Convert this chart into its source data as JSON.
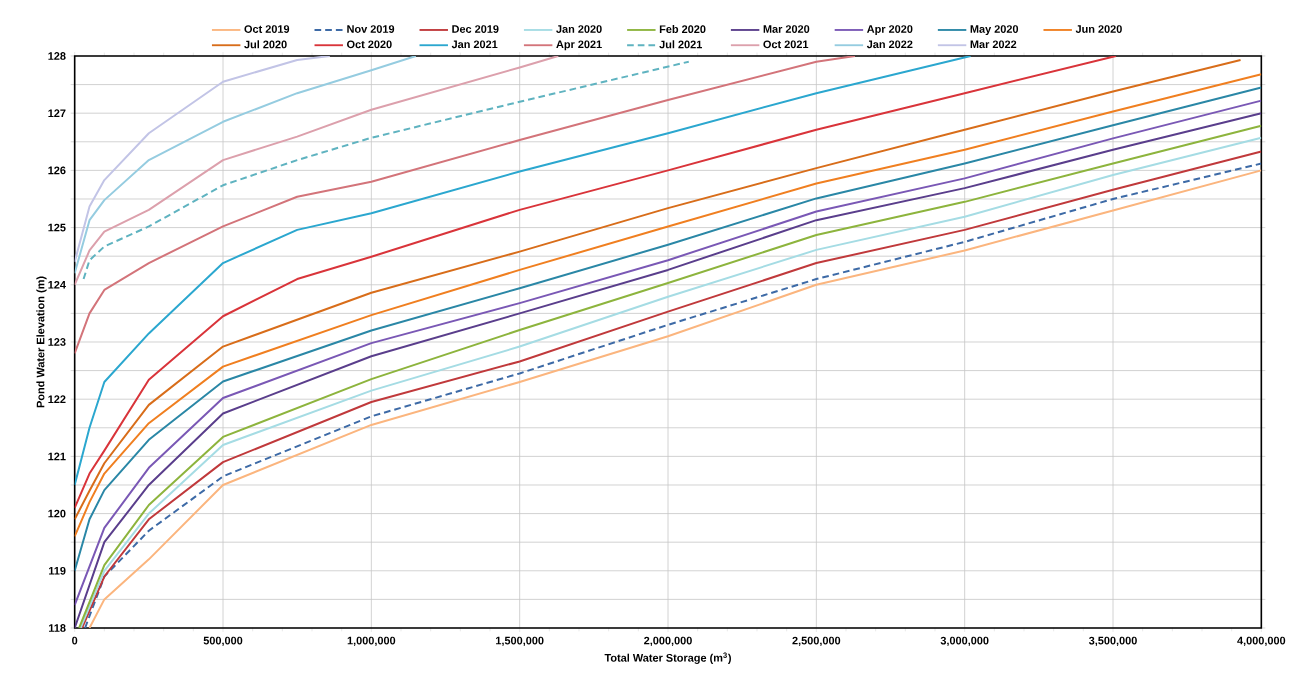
{
  "chart_data": {
    "type": "line",
    "xlabel": "Total Water Storage (m$^{3}$)",
    "ylabel": "Pond Water  Elevation (m)",
    "xlim": [
      0,
      4000000
    ],
    "ylim": [
      118,
      128
    ],
    "xticks": [
      0,
      {
        "value": 500000,
        "label": "500,000"
      },
      {
        "value": 1000000,
        "label": "1,000,000"
      },
      {
        "value": 1500000,
        "label": "1,500,000"
      },
      {
        "value": 2000000,
        "label": "2,000,000"
      },
      {
        "value": 2500000,
        "label": "2,500,000"
      },
      {
        "value": 3000000,
        "label": "3,000,000"
      },
      {
        "value": 3500000,
        "label": "3,500,000"
      },
      {
        "value": 4000000,
        "label": "4,000,000"
      }
    ],
    "yticks": [
      118,
      {
        "value": 118.5,
        "label": null
      },
      119,
      {
        "value": 119.5,
        "label": null
      },
      120,
      {
        "value": 120.5,
        "label": null
      },
      121,
      {
        "value": 121.5,
        "label": null
      },
      122,
      {
        "value": 122.5,
        "label": null
      },
      123,
      {
        "value": 123.5,
        "label": null
      },
      124,
      {
        "value": 124.5,
        "label": null
      },
      125,
      {
        "value": 125.5,
        "label": null
      },
      126,
      {
        "value": 126.5,
        "label": null
      },
      127,
      {
        "value": 127.5,
        "label": null
      },
      128
    ],
    "grid": true,
    "legend": "top",
    "series": [
      {
        "name": "Oct 2019",
        "color": "#fbb57e",
        "line_style": "solid",
        "x": [
          50000,
          100000,
          250000,
          500000,
          1000000,
          1500000,
          2000000,
          2500000,
          3000000,
          3500000,
          4000000
        ],
        "values": [
          118,
          118.5,
          119.2,
          120.5,
          121.55,
          122.3,
          123.1,
          124.0,
          124.6,
          125.3,
          126.0
        ]
      },
      {
        "name": "Nov 2019",
        "color": "#3d6aa6",
        "line_style": "dashed",
        "x": [
          35000,
          100000,
          250000,
          500000,
          1000000,
          1500000,
          2000000,
          2500000,
          3000000,
          3500000,
          4000000
        ],
        "values": [
          118,
          118.9,
          119.7,
          120.65,
          121.7,
          122.45,
          123.3,
          124.1,
          124.75,
          125.5,
          126.12
        ]
      },
      {
        "name": "Dec 2019",
        "color": "#c0393b",
        "line_style": "solid",
        "x": [
          25000,
          100000,
          250000,
          500000,
          1000000,
          1500000,
          2000000,
          2500000,
          3000000,
          3500000,
          4000000
        ],
        "values": [
          118,
          118.9,
          119.9,
          120.9,
          121.95,
          122.66,
          123.53,
          124.38,
          124.96,
          125.66,
          126.33
        ]
      },
      {
        "name": "Jan 2020",
        "color": "#a5dce4",
        "line_style": "solid",
        "x": [
          20000,
          100000,
          250000,
          500000,
          1000000,
          1500000,
          2000000,
          2500000,
          3000000,
          3500000,
          4000000
        ],
        "values": [
          118,
          119.0,
          120.0,
          121.2,
          122.15,
          122.92,
          123.79,
          124.61,
          125.19,
          125.92,
          126.57
        ]
      },
      {
        "name": "Feb 2020",
        "color": "#8db43d",
        "line_style": "solid",
        "x": [
          15000,
          100000,
          250000,
          500000,
          1000000,
          1500000,
          2000000,
          2500000,
          3000000,
          3500000,
          4000000
        ],
        "values": [
          118,
          119.1,
          120.15,
          121.34,
          122.35,
          123.21,
          124.03,
          124.87,
          125.45,
          126.12,
          126.78
        ]
      },
      {
        "name": "Mar 2020",
        "color": "#5a3e8c",
        "line_style": "solid",
        "x": [
          0,
          100000,
          250000,
          500000,
          1000000,
          1500000,
          2000000,
          2500000,
          3000000,
          3500000,
          4000000
        ],
        "values": [
          118,
          119.5,
          120.5,
          121.75,
          122.75,
          123.5,
          124.26,
          125.13,
          125.69,
          126.36,
          127.0
        ]
      },
      {
        "name": "Apr 2020",
        "color": "#7a58b5",
        "line_style": "solid",
        "x": [
          0,
          100000,
          250000,
          500000,
          1000000,
          1500000,
          2000000,
          2500000,
          3000000,
          3500000,
          4000000
        ],
        "values": [
          118.4,
          119.75,
          120.8,
          122.02,
          122.98,
          123.68,
          124.43,
          125.28,
          125.86,
          126.56,
          127.22
        ]
      },
      {
        "name": "May 2020",
        "color": "#2a87a6",
        "line_style": "solid",
        "x": [
          0,
          50000,
          100000,
          250000,
          500000,
          1000000,
          1500000,
          2000000,
          2500000,
          3000000,
          3500000,
          4000000
        ],
        "values": [
          119.0,
          119.9,
          120.41,
          121.29,
          122.31,
          123.2,
          123.94,
          124.7,
          125.51,
          126.12,
          126.79,
          127.45
        ]
      },
      {
        "name": "Jun 2020",
        "color": "#f07f20",
        "line_style": "solid",
        "x": [
          0,
          50000,
          100000,
          250000,
          500000,
          1000000,
          1500000,
          2000000,
          2500000,
          3000000,
          3500000,
          4000000
        ],
        "values": [
          119.6,
          120.2,
          120.7,
          121.58,
          122.57,
          123.47,
          124.26,
          125.02,
          125.77,
          126.36,
          127.03,
          127.68
        ]
      },
      {
        "name": "Jul 2020",
        "color": "#d86d1a",
        "line_style": "solid",
        "x": [
          0,
          50000,
          100000,
          250000,
          500000,
          1000000,
          1500000,
          2000000,
          2500000,
          3000000,
          3500000,
          3930000
        ],
        "values": [
          119.9,
          120.4,
          120.88,
          121.9,
          122.92,
          123.86,
          124.58,
          125.34,
          126.04,
          126.71,
          127.38,
          127.93
        ]
      },
      {
        "name": "Oct 2020",
        "color": "#d9343a",
        "line_style": "solid",
        "x": [
          0,
          50000,
          100000,
          250000,
          500000,
          750000,
          1000000,
          1500000,
          2000000,
          2500000,
          3000000,
          3510000
        ],
        "values": [
          120.1,
          120.7,
          121.1,
          122.34,
          123.45,
          124.1,
          124.49,
          125.31,
          126.0,
          126.71,
          127.35,
          128
        ]
      },
      {
        "name": "Jan 2021",
        "color": "#2ba7cf",
        "line_style": "solid",
        "x": [
          0,
          50000,
          100000,
          250000,
          500000,
          750000,
          1000000,
          1500000,
          2000000,
          2500000,
          3020000
        ],
        "values": [
          120.5,
          121.5,
          122.3,
          123.15,
          124.38,
          124.96,
          125.25,
          125.98,
          126.65,
          127.35,
          128
        ]
      },
      {
        "name": "Apr 2021",
        "color": "#d3747a",
        "line_style": "solid",
        "x": [
          0,
          50000,
          100000,
          250000,
          500000,
          750000,
          1000000,
          1500000,
          2000000,
          2500000,
          2630000
        ],
        "values": [
          122.8,
          123.5,
          123.91,
          124.38,
          125.02,
          125.54,
          125.8,
          126.53,
          127.23,
          127.9,
          128
        ]
      },
      {
        "name": "Jul 2021",
        "color": "#5fb3c0",
        "line_style": "dashed",
        "x": [
          30000,
          50000,
          100000,
          250000,
          500000,
          750000,
          1000000,
          1500000,
          2070000
        ],
        "values": [
          124.1,
          124.43,
          124.67,
          125.02,
          125.74,
          126.18,
          126.57,
          127.2,
          127.9
        ]
      },
      {
        "name": "Oct 2021",
        "color": "#dca0ac",
        "line_style": "solid",
        "x": [
          0,
          50000,
          100000,
          250000,
          500000,
          750000,
          1000000,
          1500000,
          1630000
        ],
        "values": [
          124.0,
          124.6,
          124.93,
          125.31,
          126.18,
          126.59,
          127.06,
          127.8,
          128
        ]
      },
      {
        "name": "Jan 2022",
        "color": "#95cce0",
        "line_style": "solid",
        "x": [
          0,
          50000,
          100000,
          250000,
          500000,
          750000,
          1000000,
          1150000
        ],
        "values": [
          124.2,
          125.13,
          125.48,
          126.18,
          126.85,
          127.35,
          127.75,
          128
        ]
      },
      {
        "name": "Mar 2022",
        "color": "#c2c4e6",
        "line_style": "solid",
        "x": [
          0,
          50000,
          100000,
          250000,
          500000,
          750000,
          860000
        ],
        "values": [
          124.4,
          125.37,
          125.83,
          126.65,
          127.55,
          127.93,
          128
        ]
      }
    ]
  }
}
